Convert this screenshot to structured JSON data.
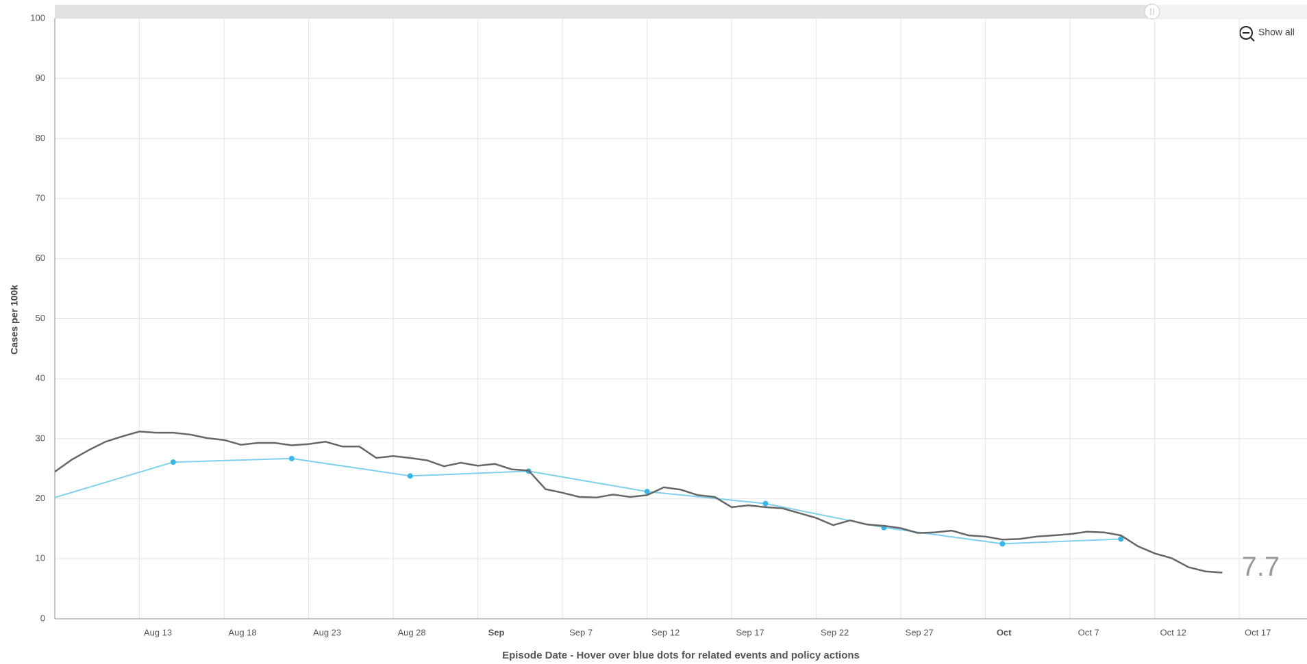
{
  "chart_data": {
    "type": "line",
    "y_label": "Cases per 100k",
    "x_label": "Episode Date - Hover over blue dots for related events and policy actions",
    "button": "Show all",
    "xlim": [
      "08-08",
      "10-21"
    ],
    "ylim": [
      0,
      100
    ],
    "yticks": [
      0,
      10,
      20,
      30,
      40,
      50,
      60,
      70,
      80,
      90,
      100
    ],
    "xticks": [
      {
        "value": "08-13",
        "label": "Aug 13"
      },
      {
        "value": "08-18",
        "label": "Aug 18"
      },
      {
        "value": "08-23",
        "label": "Aug 23"
      },
      {
        "value": "08-28",
        "label": "Aug 28"
      },
      {
        "value": "09-02",
        "label": "Sep"
      },
      {
        "value": "09-07",
        "label": "Sep 7"
      },
      {
        "value": "09-12",
        "label": "Sep 12"
      },
      {
        "value": "09-17",
        "label": "Sep 17"
      },
      {
        "value": "09-22",
        "label": "Sep 22"
      },
      {
        "value": "09-27",
        "label": "Sep 27"
      },
      {
        "value": "10-02",
        "label": "Oct"
      },
      {
        "value": "10-07",
        "label": "Oct 7"
      },
      {
        "value": "10-12",
        "label": "Oct 12"
      },
      {
        "value": "10-17",
        "label": "Oct 17"
      }
    ],
    "grid": true,
    "series": [
      {
        "color": "#666666",
        "markers": false,
        "x": [
          "08-08",
          "08-09",
          "08-10",
          "08-11",
          "08-12",
          "08-13",
          "08-14",
          "08-15",
          "08-16",
          "08-17",
          "08-18",
          "08-19",
          "08-20",
          "08-21",
          "08-22",
          "08-23",
          "08-24",
          "08-25",
          "08-26",
          "08-27",
          "08-28",
          "08-29",
          "08-30",
          "08-31",
          "09-01",
          "09-02",
          "09-03",
          "09-04",
          "09-05",
          "09-06",
          "09-07",
          "09-08",
          "09-09",
          "09-10",
          "09-11",
          "09-12",
          "09-13",
          "09-14",
          "09-15",
          "09-16",
          "09-17",
          "09-18",
          "09-19",
          "09-20",
          "09-21",
          "09-22",
          "09-23",
          "09-24",
          "09-25",
          "09-26",
          "09-27",
          "09-28",
          "09-29",
          "09-30",
          "10-01",
          "10-02",
          "10-03",
          "10-04",
          "10-05",
          "10-06",
          "10-07",
          "10-08",
          "10-09",
          "10-10",
          "10-11",
          "10-12",
          "10-13",
          "10-14",
          "10-15",
          "10-16"
        ],
        "values": [
          24.5,
          26.5,
          28.1,
          29.5,
          30.4,
          31.2,
          31.0,
          31.0,
          30.7,
          30.1,
          29.8,
          29.0,
          29.3,
          29.3,
          28.9,
          29.1,
          29.5,
          28.7,
          28.7,
          26.8,
          27.1,
          26.8,
          26.4,
          25.4,
          26.0,
          25.5,
          25.8,
          24.9,
          24.7,
          21.6,
          21.0,
          20.3,
          20.2,
          20.7,
          20.3,
          20.6,
          21.9,
          21.5,
          20.6,
          20.3,
          18.6,
          18.9,
          18.6,
          18.4,
          17.6,
          16.8,
          15.6,
          16.4,
          15.7,
          15.5,
          15.1,
          14.3,
          14.4,
          14.7,
          13.9,
          13.7,
          13.2,
          13.3,
          13.7,
          13.9,
          14.1,
          14.5,
          14.4,
          13.9,
          12.1,
          10.9,
          10.1,
          8.6,
          7.9,
          7.7
        ]
      },
      {
        "color": "#7fd0ee",
        "marker_color": "#3bb5e8",
        "markers": true,
        "x": [
          "08-08",
          "08-15",
          "08-22",
          "08-29",
          "09-05",
          "09-12",
          "09-19",
          "09-26",
          "10-03",
          "10-10"
        ],
        "values": [
          20.2,
          26.1,
          26.7,
          23.8,
          24.6,
          21.2,
          19.2,
          15.2,
          12.5,
          13.3
        ]
      }
    ]
  }
}
